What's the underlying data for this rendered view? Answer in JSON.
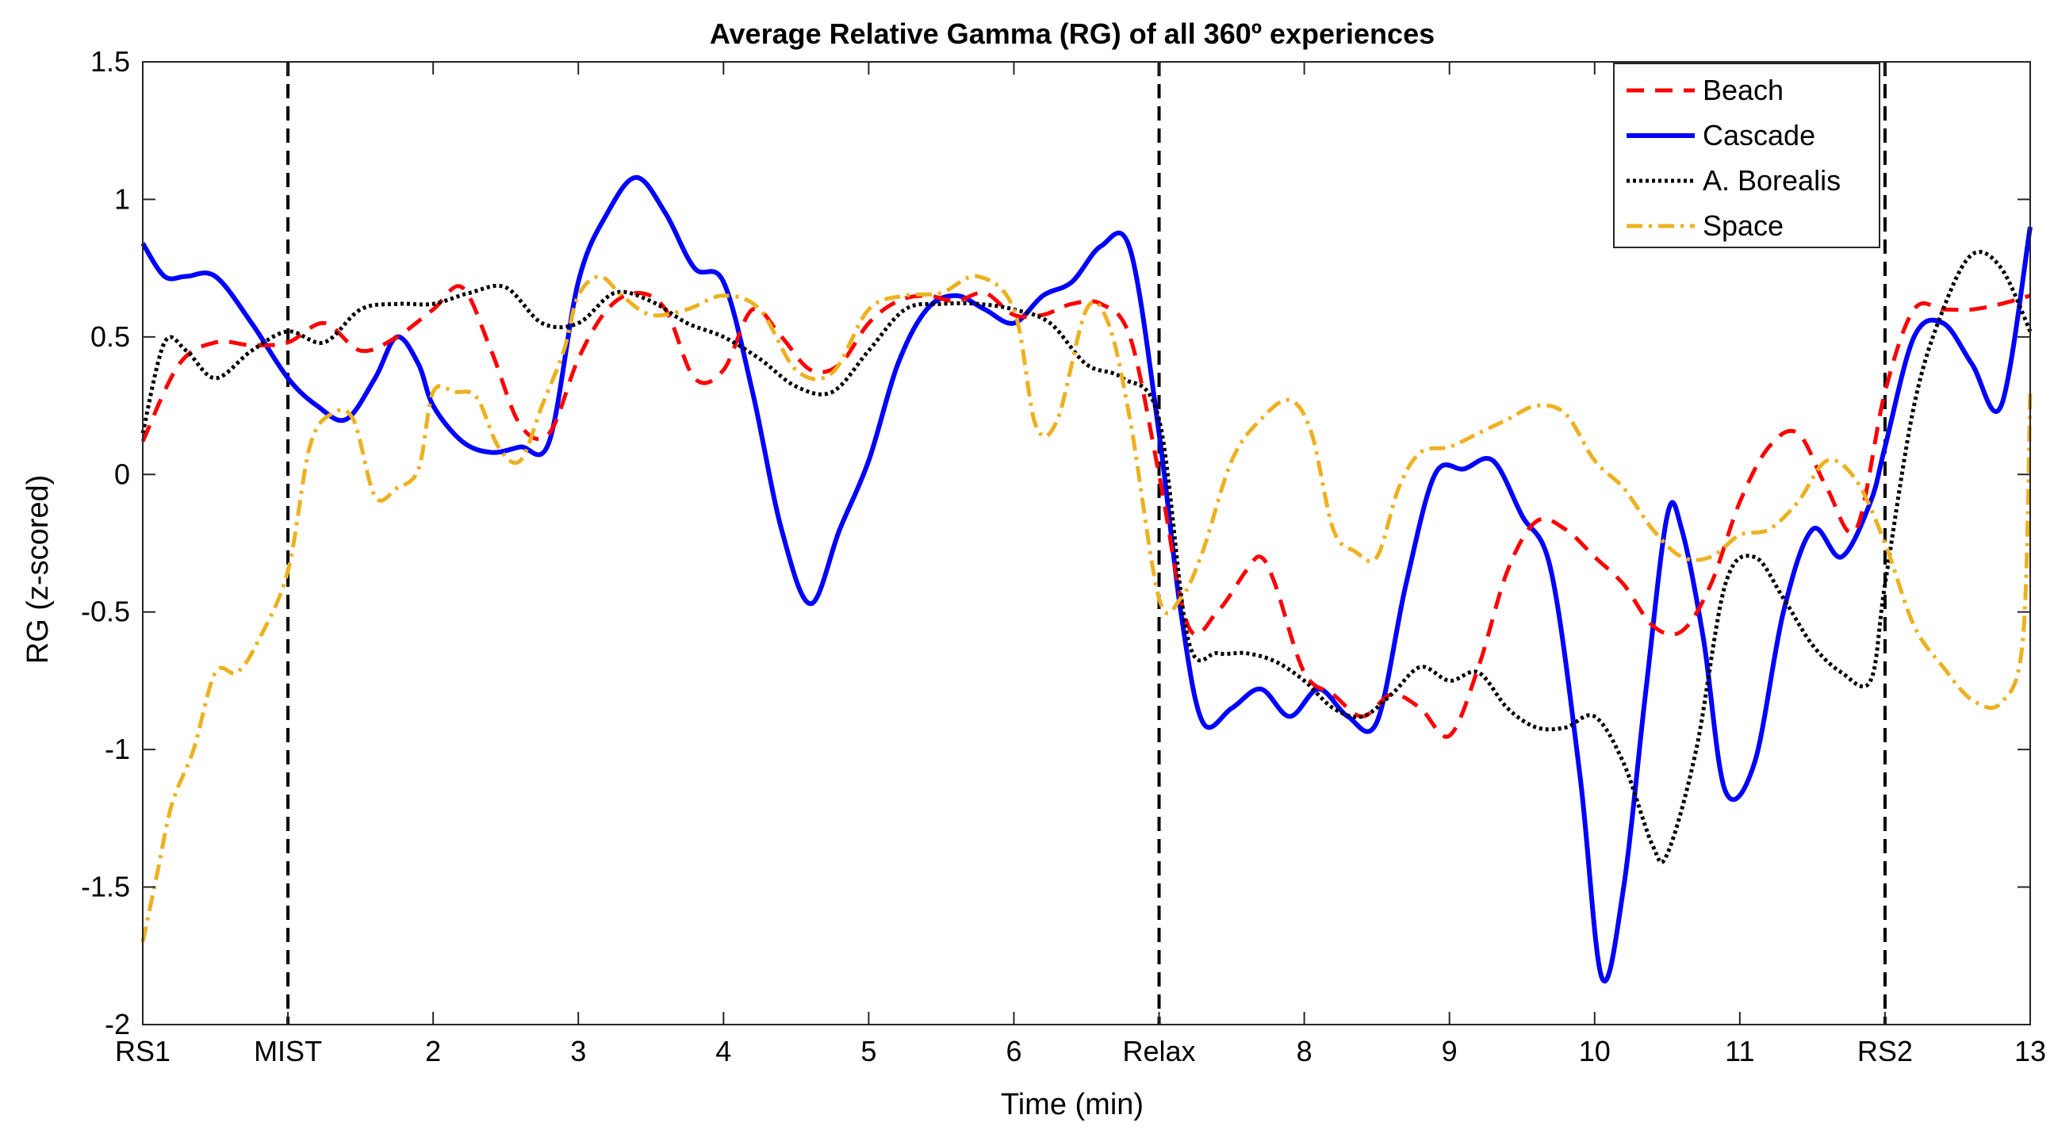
{
  "chart_data": {
    "type": "line",
    "title": "Average Relative Gamma (RG) of all 360º experiences",
    "xlabel": "Time (min)",
    "ylabel": "RG (z-scored)",
    "xlim": [
      0,
      13
    ],
    "ylim": [
      -2,
      1.5
    ],
    "x_ticks": [
      {
        "value": 0,
        "label": "RS1"
      },
      {
        "value": 1,
        "label": "MIST"
      },
      {
        "value": 2,
        "label": "2"
      },
      {
        "value": 3,
        "label": "3"
      },
      {
        "value": 4,
        "label": "4"
      },
      {
        "value": 5,
        "label": "5"
      },
      {
        "value": 6,
        "label": "6"
      },
      {
        "value": 7,
        "label": "Relax"
      },
      {
        "value": 8,
        "label": "8"
      },
      {
        "value": 9,
        "label": "9"
      },
      {
        "value": 10,
        "label": "10"
      },
      {
        "value": 11,
        "label": "11"
      },
      {
        "value": 12,
        "label": "RS2"
      },
      {
        "value": 13,
        "label": "13"
      }
    ],
    "y_ticks": [
      {
        "value": 1.5,
        "label": "1.5"
      },
      {
        "value": 1,
        "label": "1"
      },
      {
        "value": 0.5,
        "label": "0.5"
      },
      {
        "value": 0,
        "label": "0"
      },
      {
        "value": -0.5,
        "label": "-0.5"
      },
      {
        "value": -1,
        "label": "-1"
      },
      {
        "value": -1.5,
        "label": "-1.5"
      },
      {
        "value": -2,
        "label": "-2"
      }
    ],
    "vlines": [
      1,
      7,
      12
    ],
    "legend_position": "top-right",
    "series": [
      {
        "name": "Beach",
        "color": "#ff0000",
        "style": "dashed",
        "x": [
          0,
          0.25,
          0.5,
          0.75,
          1,
          1.25,
          1.5,
          1.75,
          2,
          2.2,
          2.4,
          2.6,
          2.8,
          3,
          3.2,
          3.4,
          3.6,
          3.8,
          4,
          4.2,
          4.4,
          4.6,
          4.8,
          5,
          5.2,
          5.4,
          5.6,
          5.8,
          6,
          6.2,
          6.4,
          6.6,
          6.8,
          7,
          7.2,
          7.4,
          7.6,
          7.7,
          7.8,
          8,
          8.2,
          8.4,
          8.6,
          8.8,
          9,
          9.2,
          9.4,
          9.6,
          9.8,
          10,
          10.2,
          10.4,
          10.6,
          10.8,
          11,
          11.2,
          11.4,
          11.6,
          11.8,
          12,
          12.2,
          12.4,
          12.6,
          12.8,
          13
        ],
        "values": [
          0.12,
          0.4,
          0.48,
          0.47,
          0.48,
          0.55,
          0.45,
          0.5,
          0.6,
          0.68,
          0.45,
          0.18,
          0.15,
          0.42,
          0.6,
          0.66,
          0.6,
          0.35,
          0.38,
          0.6,
          0.5,
          0.38,
          0.4,
          0.55,
          0.63,
          0.65,
          0.63,
          0.66,
          0.58,
          0.58,
          0.62,
          0.62,
          0.5,
          0.0,
          -0.55,
          -0.5,
          -0.35,
          -0.3,
          -0.4,
          -0.72,
          -0.8,
          -0.88,
          -0.8,
          -0.85,
          -0.95,
          -0.7,
          -0.35,
          -0.17,
          -0.2,
          -0.3,
          -0.4,
          -0.55,
          -0.57,
          -0.4,
          -0.1,
          0.1,
          0.15,
          -0.05,
          -0.2,
          0.3,
          0.6,
          0.6,
          0.6,
          0.62,
          0.65
        ]
      },
      {
        "name": "Cascade",
        "color": "#0000ff",
        "style": "solid",
        "x": [
          0,
          0.15,
          0.3,
          0.5,
          0.75,
          1,
          1.2,
          1.4,
          1.6,
          1.75,
          1.9,
          2,
          2.2,
          2.4,
          2.6,
          2.8,
          3,
          3.2,
          3.4,
          3.6,
          3.8,
          4,
          4.2,
          4.4,
          4.6,
          4.8,
          5,
          5.2,
          5.4,
          5.6,
          5.8,
          6,
          6.2,
          6.4,
          6.6,
          6.8,
          7,
          7.15,
          7.3,
          7.5,
          7.7,
          7.9,
          8.1,
          8.3,
          8.5,
          8.7,
          8.9,
          9.1,
          9.3,
          9.5,
          9.7,
          9.9,
          10.05,
          10.2,
          10.35,
          10.5,
          10.6,
          10.75,
          10.9,
          11.1,
          11.3,
          11.5,
          11.7,
          11.9,
          12,
          12.2,
          12.4,
          12.6,
          12.8,
          13
        ],
        "values": [
          0.84,
          0.72,
          0.72,
          0.72,
          0.55,
          0.35,
          0.25,
          0.2,
          0.35,
          0.5,
          0.4,
          0.25,
          0.12,
          0.08,
          0.1,
          0.12,
          0.7,
          0.95,
          1.08,
          0.95,
          0.75,
          0.7,
          0.3,
          -0.2,
          -0.47,
          -0.2,
          0.05,
          0.4,
          0.6,
          0.65,
          0.6,
          0.55,
          0.65,
          0.7,
          0.83,
          0.82,
          0.15,
          -0.5,
          -0.9,
          -0.85,
          -0.78,
          -0.88,
          -0.78,
          -0.88,
          -0.9,
          -0.4,
          0.0,
          0.02,
          0.05,
          -0.15,
          -0.35,
          -1.1,
          -1.83,
          -1.5,
          -0.8,
          -0.15,
          -0.2,
          -0.6,
          -1.15,
          -1.05,
          -0.5,
          -0.2,
          -0.3,
          -0.1,
          0.1,
          0.5,
          0.55,
          0.4,
          0.25,
          0.9
        ]
      },
      {
        "name": "A. Borealis",
        "color": "#000000",
        "style": "dotted",
        "x": [
          0,
          0.15,
          0.3,
          0.5,
          0.75,
          1,
          1.25,
          1.5,
          1.75,
          2,
          2.25,
          2.5,
          2.75,
          3,
          3.25,
          3.5,
          3.75,
          4,
          4.25,
          4.5,
          4.75,
          5,
          5.25,
          5.5,
          5.75,
          6,
          6.25,
          6.5,
          6.75,
          7,
          7.2,
          7.4,
          7.6,
          7.8,
          8,
          8.2,
          8.4,
          8.6,
          8.8,
          9,
          9.2,
          9.4,
          9.6,
          9.8,
          10,
          10.2,
          10.4,
          10.5,
          10.7,
          10.9,
          11.1,
          11.3,
          11.5,
          11.7,
          11.9,
          12,
          12.2,
          12.4,
          12.6,
          12.8,
          13
        ],
        "values": [
          0.15,
          0.48,
          0.45,
          0.35,
          0.45,
          0.52,
          0.48,
          0.6,
          0.62,
          0.62,
          0.66,
          0.68,
          0.55,
          0.55,
          0.66,
          0.63,
          0.55,
          0.5,
          0.42,
          0.32,
          0.3,
          0.45,
          0.6,
          0.62,
          0.62,
          0.6,
          0.55,
          0.4,
          0.35,
          0.2,
          -0.6,
          -0.65,
          -0.65,
          -0.68,
          -0.75,
          -0.85,
          -0.88,
          -0.8,
          -0.7,
          -0.75,
          -0.72,
          -0.85,
          -0.92,
          -0.92,
          -0.88,
          -1.05,
          -1.35,
          -1.38,
          -1.0,
          -0.4,
          -0.3,
          -0.45,
          -0.62,
          -0.72,
          -0.75,
          -0.4,
          0.25,
          0.6,
          0.8,
          0.75,
          0.52
        ]
      },
      {
        "name": "Space",
        "color": "#edb120",
        "style": "dashdot",
        "x": [
          0,
          0.1,
          0.2,
          0.35,
          0.5,
          0.65,
          0.8,
          1,
          1.15,
          1.3,
          1.45,
          1.6,
          1.75,
          1.9,
          2,
          2.15,
          2.3,
          2.45,
          2.6,
          2.75,
          2.9,
          3,
          3.15,
          3.3,
          3.5,
          3.75,
          4,
          4.25,
          4.5,
          4.75,
          5,
          5.25,
          5.5,
          5.75,
          6,
          6.15,
          6.3,
          6.5,
          6.65,
          6.8,
          7,
          7.15,
          7.3,
          7.5,
          7.7,
          7.9,
          8.05,
          8.2,
          8.35,
          8.5,
          8.65,
          8.8,
          9,
          9.2,
          9.4,
          9.6,
          9.8,
          10,
          10.2,
          10.4,
          10.6,
          10.8,
          11,
          11.2,
          11.4,
          11.6,
          11.8,
          12,
          12.2,
          12.4,
          12.6,
          12.8,
          12.95,
          13
        ],
        "values": [
          -1.7,
          -1.45,
          -1.2,
          -1.0,
          -0.72,
          -0.72,
          -0.6,
          -0.35,
          0.1,
          0.22,
          0.2,
          -0.08,
          -0.05,
          0.02,
          0.3,
          0.3,
          0.28,
          0.1,
          0.05,
          0.25,
          0.45,
          0.65,
          0.72,
          0.65,
          0.58,
          0.6,
          0.65,
          0.6,
          0.38,
          0.37,
          0.6,
          0.65,
          0.66,
          0.72,
          0.6,
          0.18,
          0.2,
          0.6,
          0.55,
          0.2,
          -0.45,
          -0.45,
          -0.28,
          0.05,
          0.2,
          0.27,
          0.15,
          -0.2,
          -0.28,
          -0.3,
          -0.05,
          0.08,
          0.1,
          0.15,
          0.2,
          0.25,
          0.22,
          0.05,
          -0.05,
          -0.2,
          -0.3,
          -0.3,
          -0.22,
          -0.2,
          -0.1,
          0.05,
          -0.02,
          -0.25,
          -0.55,
          -0.7,
          -0.82,
          -0.83,
          -0.6,
          0.3
        ]
      }
    ]
  }
}
